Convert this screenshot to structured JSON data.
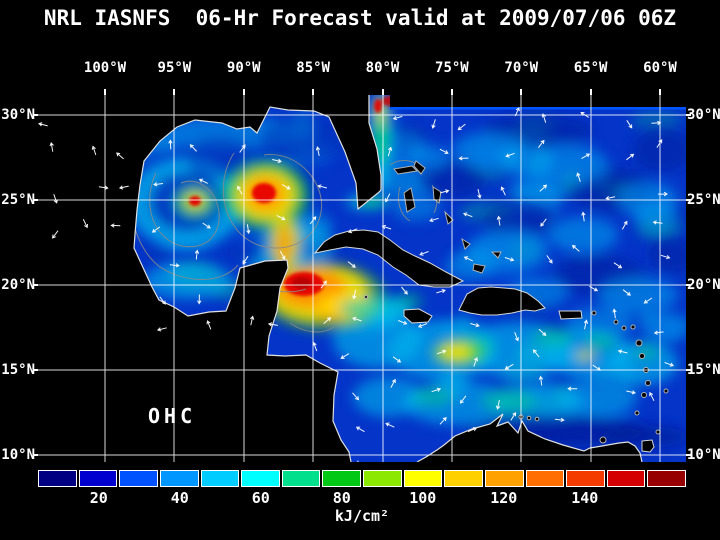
{
  "title": "NRL IASNFS  06-Hr Forecast valid at 2009/07/06 06Z",
  "axes": {
    "lon_ticks": [
      "100°W",
      "95°W",
      "90°W",
      "85°W",
      "80°W",
      "75°W",
      "70°W",
      "65°W",
      "60°W"
    ],
    "lat_ticks_left": [
      "30°N",
      "25°N",
      "20°N",
      "15°N",
      "10°N"
    ],
    "lat_ticks_right": [
      "30°N",
      "25°N",
      "20°N",
      "15°N",
      "10°N"
    ]
  },
  "map": {
    "region_label": "OHC"
  },
  "colorbar": {
    "tick_labels": [
      "20",
      "40",
      "60",
      "80",
      "100",
      "120",
      "140"
    ],
    "units_label": "kJ/cm²",
    "colors": [
      "#000082",
      "#0000cf",
      "#0051ff",
      "#0096ff",
      "#00ccff",
      "#00ffff",
      "#00e08c",
      "#00c814",
      "#8ce800",
      "#ffff00",
      "#ffd000",
      "#ffa100",
      "#ff6e00",
      "#f53c00",
      "#d40000",
      "#960000"
    ]
  }
}
